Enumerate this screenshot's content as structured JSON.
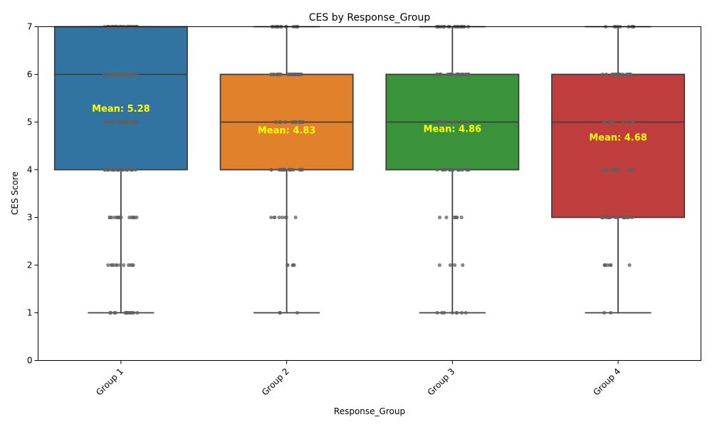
{
  "chart_data": {
    "type": "box",
    "title": "CES by Response_Group",
    "xlabel": "Response_Group",
    "ylabel": "CES Score",
    "ylim": [
      0,
      7
    ],
    "yticks": [
      0,
      1,
      2,
      3,
      4,
      5,
      6,
      7
    ],
    "grid": false,
    "categories": [
      "Group 1",
      "Group 2",
      "Group 3",
      "Group 4"
    ],
    "colors": [
      "#3274a1",
      "#e1812c",
      "#3a923a",
      "#c03d3e"
    ],
    "median_color": "#3f3f3f",
    "point_color": "#606060",
    "boxes": [
      {
        "category": "Group 1",
        "whisker_low": 1,
        "q1": 4,
        "median": 6,
        "q3": 7,
        "whisker_high": 7,
        "mean": 5.28,
        "mean_label": "Mean: 5.28",
        "points": {
          "1": 14,
          "2": 12,
          "3": 16,
          "4": 30,
          "5": 34,
          "6": 40,
          "7": 36
        }
      },
      {
        "category": "Group 2",
        "whisker_low": 1,
        "q1": 4,
        "median": 5,
        "q3": 6,
        "whisker_high": 7,
        "mean": 4.83,
        "mean_label": "Mean: 4.83",
        "points": {
          "1": 3,
          "2": 5,
          "3": 8,
          "4": 22,
          "5": 12,
          "6": 24,
          "7": 14
        }
      },
      {
        "category": "Group 3",
        "whisker_low": 1,
        "q1": 4,
        "median": 5,
        "q3": 6,
        "whisker_high": 7,
        "mean": 4.86,
        "mean_label": "Mean: 4.86",
        "points": {
          "1": 8,
          "2": 4,
          "3": 7,
          "4": 20,
          "5": 12,
          "6": 24,
          "7": 18
        }
      },
      {
        "category": "Group 4",
        "whisker_low": 1,
        "q1": 3,
        "median": 5,
        "q3": 6,
        "whisker_high": 7,
        "mean": 4.68,
        "mean_label": "Mean: 4.68",
        "points": {
          "1": 2,
          "2": 7,
          "3": 18,
          "4": 12,
          "5": 10,
          "6": 20,
          "7": 10
        }
      }
    ]
  }
}
